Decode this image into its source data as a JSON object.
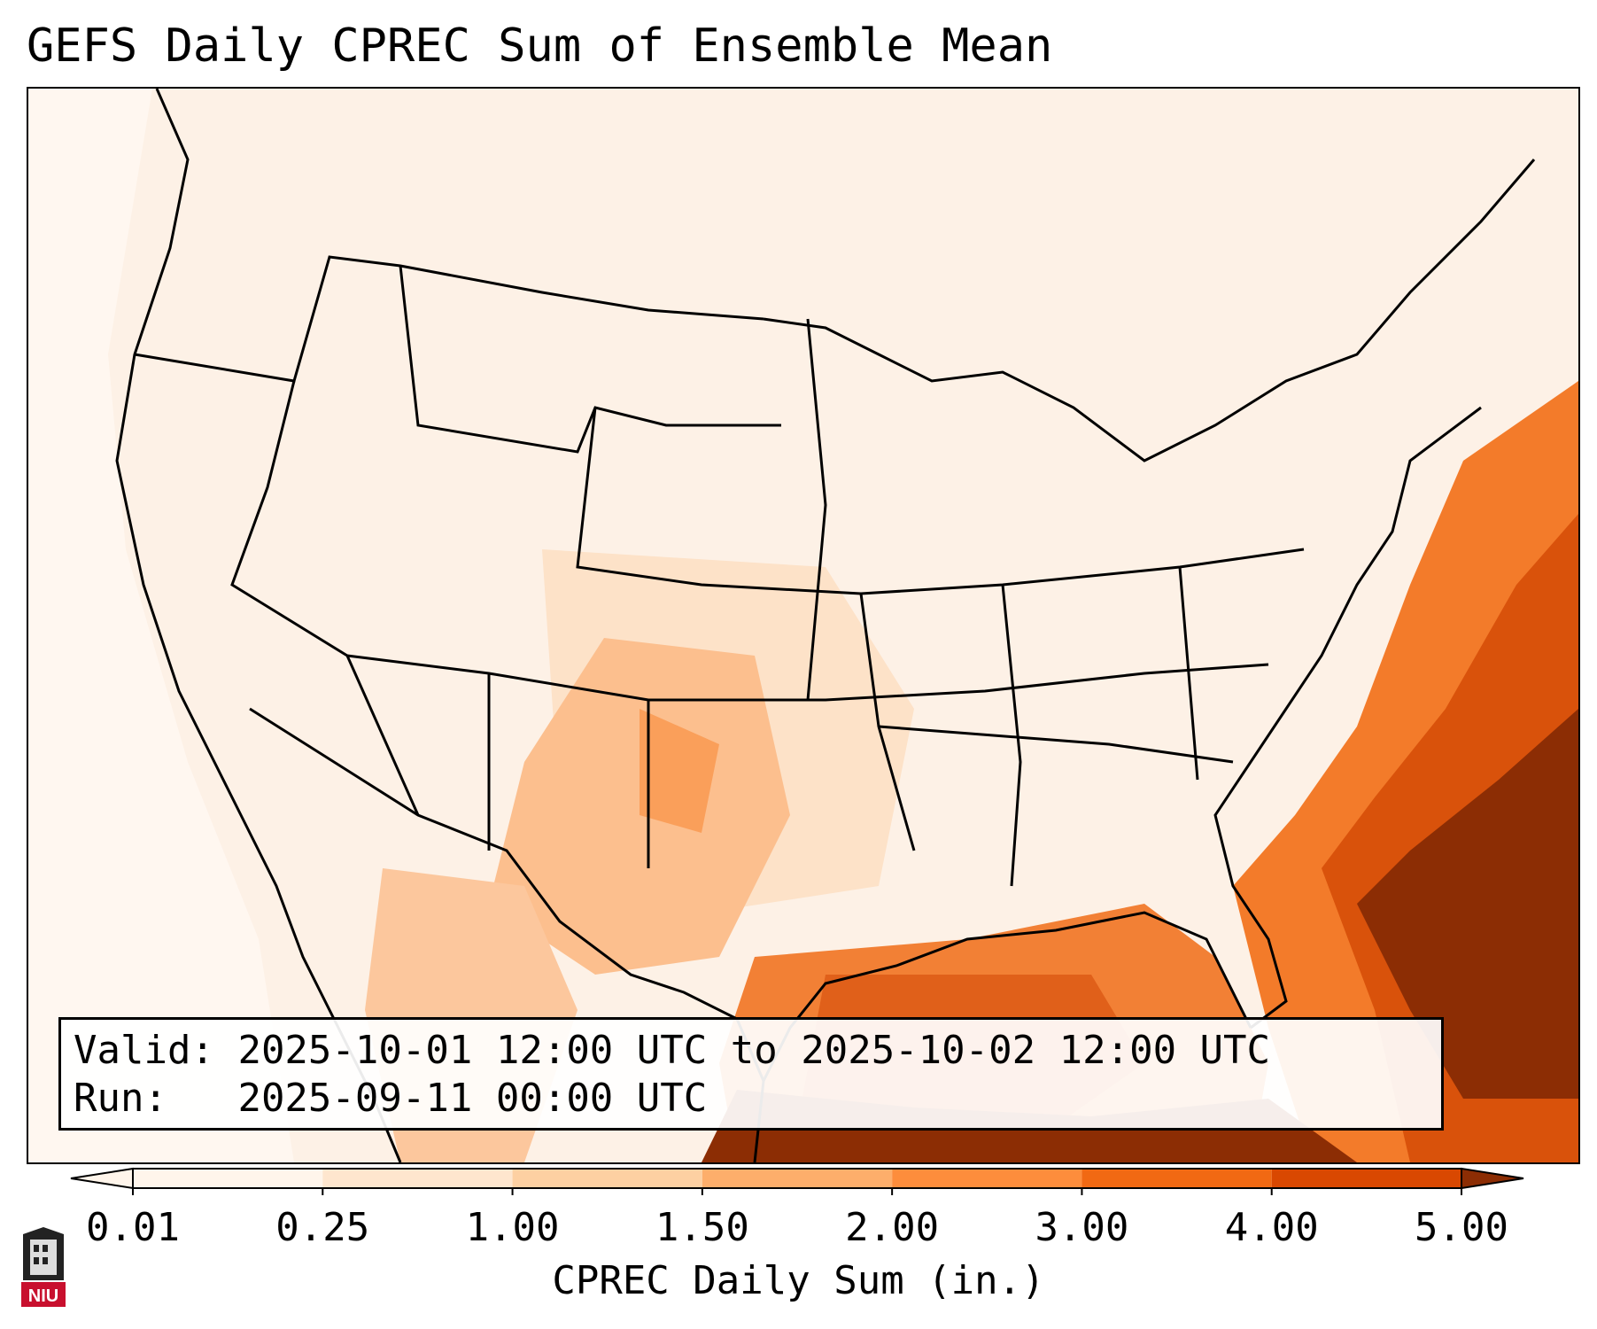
{
  "title": "GEFS Daily CPREC Sum of Ensemble Mean",
  "info": {
    "valid_label": "Valid:",
    "valid_value": "2025-10-01 12:00 UTC to 2025-10-02 12:00 UTC",
    "run_label": "Run:",
    "run_value": "2025-09-11 00:00 UTC"
  },
  "colorbar": {
    "label": "CPREC Daily Sum (in.)",
    "ticks": [
      "0.01",
      "0.25",
      "1.00",
      "1.50",
      "2.00",
      "3.00",
      "4.00",
      "5.00"
    ],
    "colors": [
      "#fff5eb",
      "#fee6ce",
      "#fdd0a2",
      "#fdae6b",
      "#fd8d3c",
      "#f16913",
      "#d94801",
      "#8c2d04"
    ]
  },
  "logo": {
    "text": "NIU",
    "color": "#c8102e"
  }
}
